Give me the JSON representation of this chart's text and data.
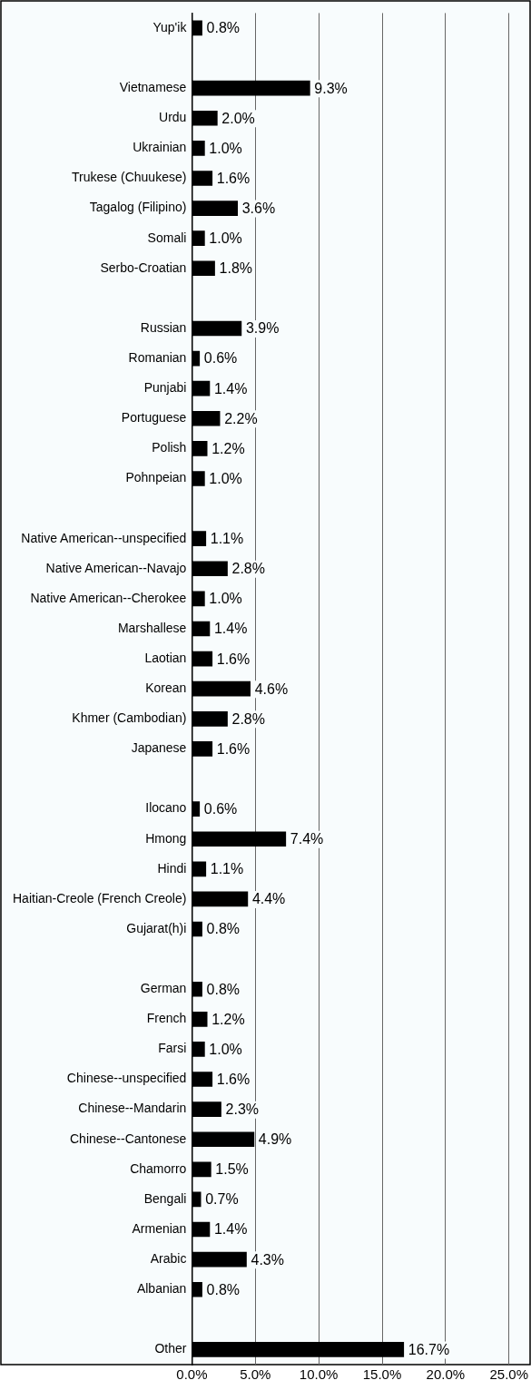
{
  "chart_data": {
    "type": "bar",
    "orientation": "horizontal",
    "categories": [
      "Yup'ik",
      null,
      "Vietnamese",
      "Urdu",
      "Ukrainian",
      "Trukese (Chuukese)",
      "Tagalog (Filipino)",
      "Somali",
      "Serbo-Croatian",
      null,
      "Russian",
      "Romanian",
      "Punjabi",
      "Portuguese",
      "Polish",
      "Pohnpeian",
      null,
      "Native American--unspecified",
      "Native American--Navajo",
      "Native American--Cherokee",
      "Marshallese",
      "Laotian",
      "Korean",
      "Khmer (Cambodian)",
      "Japanese",
      null,
      "Ilocano",
      "Hmong",
      "Hindi",
      "Haitian-Creole (French Creole)",
      "Gujarat(h)i",
      null,
      "German",
      "French",
      "Farsi",
      "Chinese--unspecified",
      "Chinese--Mandarin",
      "Chinese--Cantonese",
      "Chamorro",
      "Bengali",
      "Armenian",
      "Arabic",
      "Albanian",
      null,
      "Other"
    ],
    "values": [
      0.8,
      null,
      9.3,
      2.0,
      1.0,
      1.6,
      3.6,
      1.0,
      1.8,
      null,
      3.9,
      0.6,
      1.4,
      2.2,
      1.2,
      1.0,
      null,
      1.1,
      2.8,
      1.0,
      1.4,
      1.6,
      4.6,
      2.8,
      1.6,
      null,
      0.6,
      7.4,
      1.1,
      4.4,
      0.8,
      null,
      0.8,
      1.2,
      1.0,
      1.6,
      2.3,
      4.9,
      1.5,
      0.7,
      1.4,
      4.3,
      0.8,
      null,
      16.7
    ],
    "value_labels": [
      "0.8%",
      null,
      "9.3%",
      "2.0%",
      "1.0%",
      "1.6%",
      "3.6%",
      "1.0%",
      "1.8%",
      null,
      "3.9%",
      "0.6%",
      "1.4%",
      "2.2%",
      "1.2%",
      "1.0%",
      null,
      "1.1%",
      "2.8%",
      "1.0%",
      "1.4%",
      "1.6%",
      "4.6%",
      "2.8%",
      "1.6%",
      null,
      "0.6%",
      "7.4%",
      "1.1%",
      "4.4%",
      "0.8%",
      null,
      "0.8%",
      "1.2%",
      "1.0%",
      "1.6%",
      "2.3%",
      "4.9%",
      "1.5%",
      "0.7%",
      "1.4%",
      "4.3%",
      "0.8%",
      null,
      "16.7%"
    ],
    "color": "#000000",
    "xlim": [
      0,
      25
    ],
    "xticks": [
      {
        "value": 0,
        "label": "0.0%"
      },
      {
        "value": 5,
        "label": "5.0%"
      },
      {
        "value": 10,
        "label": "10.0%"
      },
      {
        "value": 15,
        "label": "15.0%"
      },
      {
        "value": 20,
        "label": "20.0%"
      },
      {
        "value": 25,
        "label": "25.0%"
      }
    ],
    "grid": "x",
    "legend": false
  }
}
